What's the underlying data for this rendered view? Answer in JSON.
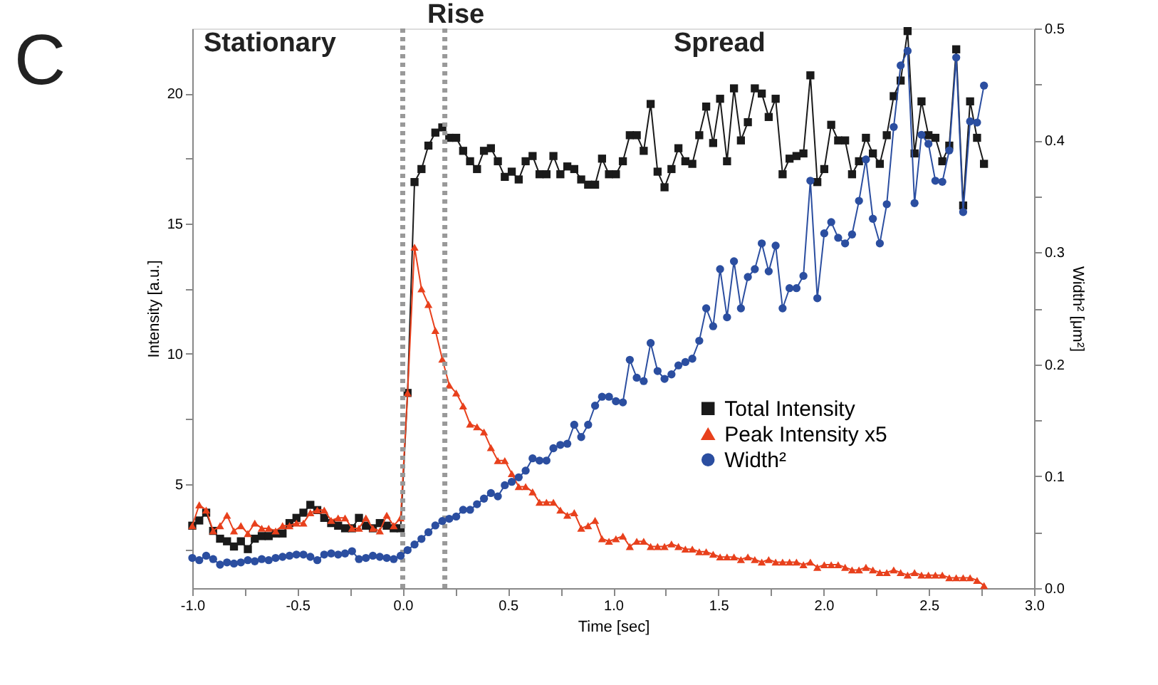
{
  "chart_data": {
    "type": "line",
    "xlabel": "Time [sec]",
    "ylabel": "Intensity [a.u.]",
    "y2label": "Width² [μm²]",
    "annotations": [
      "C",
      "Stationary",
      "Rise",
      "Spread"
    ],
    "x": [
      -1.0,
      -0.967,
      -0.934,
      -0.901,
      -0.868,
      -0.835,
      -0.802,
      -0.769,
      -0.736,
      -0.703,
      -0.67,
      -0.637,
      -0.604,
      -0.571,
      -0.538,
      -0.505,
      -0.472,
      -0.439,
      -0.406,
      -0.373,
      -0.34,
      -0.307,
      -0.274,
      -0.241,
      -0.208,
      -0.175,
      -0.142,
      -0.109,
      -0.076,
      -0.043,
      -0.01,
      0.023,
      0.056,
      0.089,
      0.122,
      0.155,
      0.188,
      0.221,
      0.254,
      0.287,
      0.32,
      0.353,
      0.386,
      0.419,
      0.452,
      0.485,
      0.518,
      0.551,
      0.584,
      0.617,
      0.65,
      0.683,
      0.716,
      0.749,
      0.782,
      0.815,
      0.848,
      0.881,
      0.914,
      0.947,
      0.98,
      1.013,
      1.046,
      1.079,
      1.112,
      1.145,
      1.178,
      1.211,
      1.244,
      1.277,
      1.31,
      1.343,
      1.376,
      1.409,
      1.442,
      1.475,
      1.508,
      1.541,
      1.574,
      1.607,
      1.64,
      1.673,
      1.706,
      1.739,
      1.772,
      1.805,
      1.838,
      1.871,
      1.904,
      1.937,
      1.97,
      2.003,
      2.036,
      2.069,
      2.102,
      2.135,
      2.168,
      2.201,
      2.234,
      2.267,
      2.3,
      2.333,
      2.366,
      2.399,
      2.432,
      2.465,
      2.498,
      2.531,
      2.564,
      2.597,
      2.63,
      2.663,
      2.696,
      2.729,
      2.762
    ],
    "series": [
      {
        "name": "Total Intensity",
        "color": "#1a1a1a",
        "marker": "square",
        "values": [
          3.4,
          3.6,
          3.9,
          3.2,
          2.9,
          2.8,
          2.6,
          2.8,
          2.5,
          2.9,
          3.0,
          3.0,
          3.1,
          3.1,
          3.5,
          3.7,
          3.9,
          4.2,
          4.0,
          3.7,
          3.5,
          3.4,
          3.3,
          3.3,
          3.7,
          3.4,
          3.3,
          3.5,
          3.4,
          3.3,
          3.3,
          8.5,
          16.6,
          17.1,
          18.0,
          18.5,
          18.7,
          18.3,
          18.3,
          17.8,
          17.4,
          17.1,
          17.8,
          17.9,
          17.4,
          16.8,
          17.0,
          16.7,
          17.4,
          17.6,
          16.9,
          16.9,
          17.6,
          16.9,
          17.2,
          17.1,
          16.7,
          16.5,
          16.5,
          17.5,
          16.9,
          16.9,
          17.4,
          18.4,
          18.4,
          17.8,
          19.6,
          17.0,
          16.4,
          17.1,
          17.9,
          17.4,
          17.3,
          18.4,
          19.5,
          18.1,
          19.8,
          17.4,
          20.2,
          18.2,
          18.9,
          20.2,
          20.0,
          19.1,
          19.8,
          16.9,
          17.5,
          17.6,
          17.7,
          20.7,
          16.6,
          17.1,
          18.8,
          18.2,
          18.2,
          16.9,
          17.4,
          18.3,
          17.7,
          17.3,
          18.4,
          19.9,
          20.5,
          22.4,
          17.7,
          19.7,
          18.4,
          18.3,
          17.4,
          18.0,
          21.7,
          15.7,
          19.7,
          18.3,
          17.3
        ]
      },
      {
        "name": "Peak Intensity x5",
        "color": "#e8401c",
        "marker": "triangle",
        "values": [
          3.4,
          4.2,
          4.0,
          3.2,
          3.4,
          3.8,
          3.2,
          3.4,
          3.1,
          3.5,
          3.3,
          3.3,
          3.2,
          3.4,
          3.4,
          3.5,
          3.5,
          3.9,
          4.0,
          4.0,
          3.6,
          3.7,
          3.7,
          3.3,
          3.3,
          3.7,
          3.3,
          3.2,
          3.8,
          3.4,
          3.7,
          8.5,
          14.1,
          12.5,
          11.9,
          10.9,
          9.8,
          8.8,
          8.5,
          8.0,
          7.3,
          7.2,
          7.0,
          6.4,
          5.9,
          5.9,
          5.4,
          4.9,
          4.9,
          4.7,
          4.3,
          4.3,
          4.3,
          4.0,
          3.8,
          3.9,
          3.3,
          3.4,
          3.6,
          2.9,
          2.8,
          2.9,
          3.0,
          2.6,
          2.8,
          2.8,
          2.6,
          2.6,
          2.6,
          2.7,
          2.6,
          2.5,
          2.5,
          2.4,
          2.4,
          2.3,
          2.2,
          2.2,
          2.2,
          2.1,
          2.2,
          2.1,
          2.0,
          2.1,
          2.0,
          2.0,
          2.0,
          2.0,
          1.9,
          2.0,
          1.8,
          1.9,
          1.9,
          1.9,
          1.8,
          1.7,
          1.7,
          1.8,
          1.7,
          1.6,
          1.6,
          1.7,
          1.6,
          1.5,
          1.6,
          1.5,
          1.5,
          1.5,
          1.5,
          1.4,
          1.4,
          1.4,
          1.4,
          1.3,
          1.1
        ]
      },
      {
        "name": "Width²",
        "color": "#2b4ea0",
        "marker": "circle",
        "axis": "y2",
        "values": [
          0.027,
          0.025,
          0.029,
          0.026,
          0.021,
          0.023,
          0.022,
          0.023,
          0.025,
          0.024,
          0.026,
          0.025,
          0.027,
          0.028,
          0.029,
          0.03,
          0.03,
          0.028,
          0.025,
          0.03,
          0.031,
          0.03,
          0.031,
          0.033,
          0.026,
          0.027,
          0.029,
          0.028,
          0.027,
          0.026,
          0.029,
          0.034,
          0.039,
          0.044,
          0.05,
          0.056,
          0.06,
          0.062,
          0.064,
          0.07,
          0.07,
          0.075,
          0.08,
          0.085,
          0.082,
          0.092,
          0.095,
          0.099,
          0.105,
          0.116,
          0.114,
          0.114,
          0.125,
          0.128,
          0.129,
          0.146,
          0.135,
          0.146,
          0.163,
          0.171,
          0.171,
          0.167,
          0.166,
          0.204,
          0.188,
          0.185,
          0.219,
          0.194,
          0.187,
          0.191,
          0.199,
          0.202,
          0.205,
          0.221,
          0.25,
          0.234,
          0.285,
          0.242,
          0.292,
          0.25,
          0.278,
          0.285,
          0.308,
          0.283,
          0.306,
          0.25,
          0.268,
          0.268,
          0.279,
          0.364,
          0.259,
          0.317,
          0.327,
          0.313,
          0.308,
          0.316,
          0.346,
          0.383,
          0.33,
          0.308,
          0.343,
          0.412,
          0.467,
          0.48,
          0.344,
          0.405,
          0.397,
          0.364,
          0.363,
          0.391,
          0.474,
          0.336,
          0.417,
          0.416,
          0.449
        ]
      }
    ],
    "ref_lines": [
      {
        "axis": "x",
        "value": 0,
        "label": null,
        "color": "#999999",
        "line_style": "dotted"
      },
      {
        "axis": "x",
        "value": 0.2,
        "label": null,
        "color": "#999999",
        "line_style": "dotted"
      }
    ],
    "xlim": [
      -1.0,
      3.0
    ],
    "xticks": [
      {
        "value": -1.0,
        "label": "-1.0"
      },
      {
        "value": -0.75,
        "label": null
      },
      {
        "value": -0.5,
        "label": "-0.5"
      },
      {
        "value": -0.25,
        "label": null
      },
      {
        "value": 0,
        "label": "0.0"
      },
      {
        "value": 0.25,
        "label": null
      },
      {
        "value": 0.5,
        "label": "0.5"
      },
      {
        "value": 0.75,
        "label": null
      },
      {
        "value": 1.0,
        "label": "1.0"
      },
      {
        "value": 1.25,
        "label": null
      },
      {
        "value": 1.5,
        "label": "1.5"
      },
      {
        "value": 1.75,
        "label": null
      },
      {
        "value": 2.0,
        "label": "2.0"
      },
      {
        "value": 2.25,
        "label": null
      },
      {
        "value": 2.5,
        "label": "2.5"
      },
      {
        "value": 2.75,
        "label": null
      },
      {
        "value": 3.0,
        "label": "3.0"
      }
    ],
    "ylim": [
      1,
      22.5
    ],
    "yticks": [
      {
        "value": 2.5,
        "label": null
      },
      5,
      {
        "value": 7.5,
        "label": null
      },
      10,
      {
        "value": 12.5,
        "label": null
      },
      15,
      {
        "value": 17.5,
        "label": null
      },
      20
    ],
    "y2lim": [
      0,
      0.5
    ],
    "y2ticks": [
      {
        "value": 0,
        "label": "0.0"
      },
      {
        "value": 0.05,
        "label": null
      },
      0.1,
      {
        "value": 0.15,
        "label": null
      },
      0.2,
      {
        "value": 0.25,
        "label": null
      },
      0.3,
      {
        "value": 0.35,
        "label": null
      },
      0.4,
      {
        "value": 0.45,
        "label": null
      },
      0.5
    ],
    "grid": false,
    "legend": "right",
    "line_style": "solid"
  }
}
